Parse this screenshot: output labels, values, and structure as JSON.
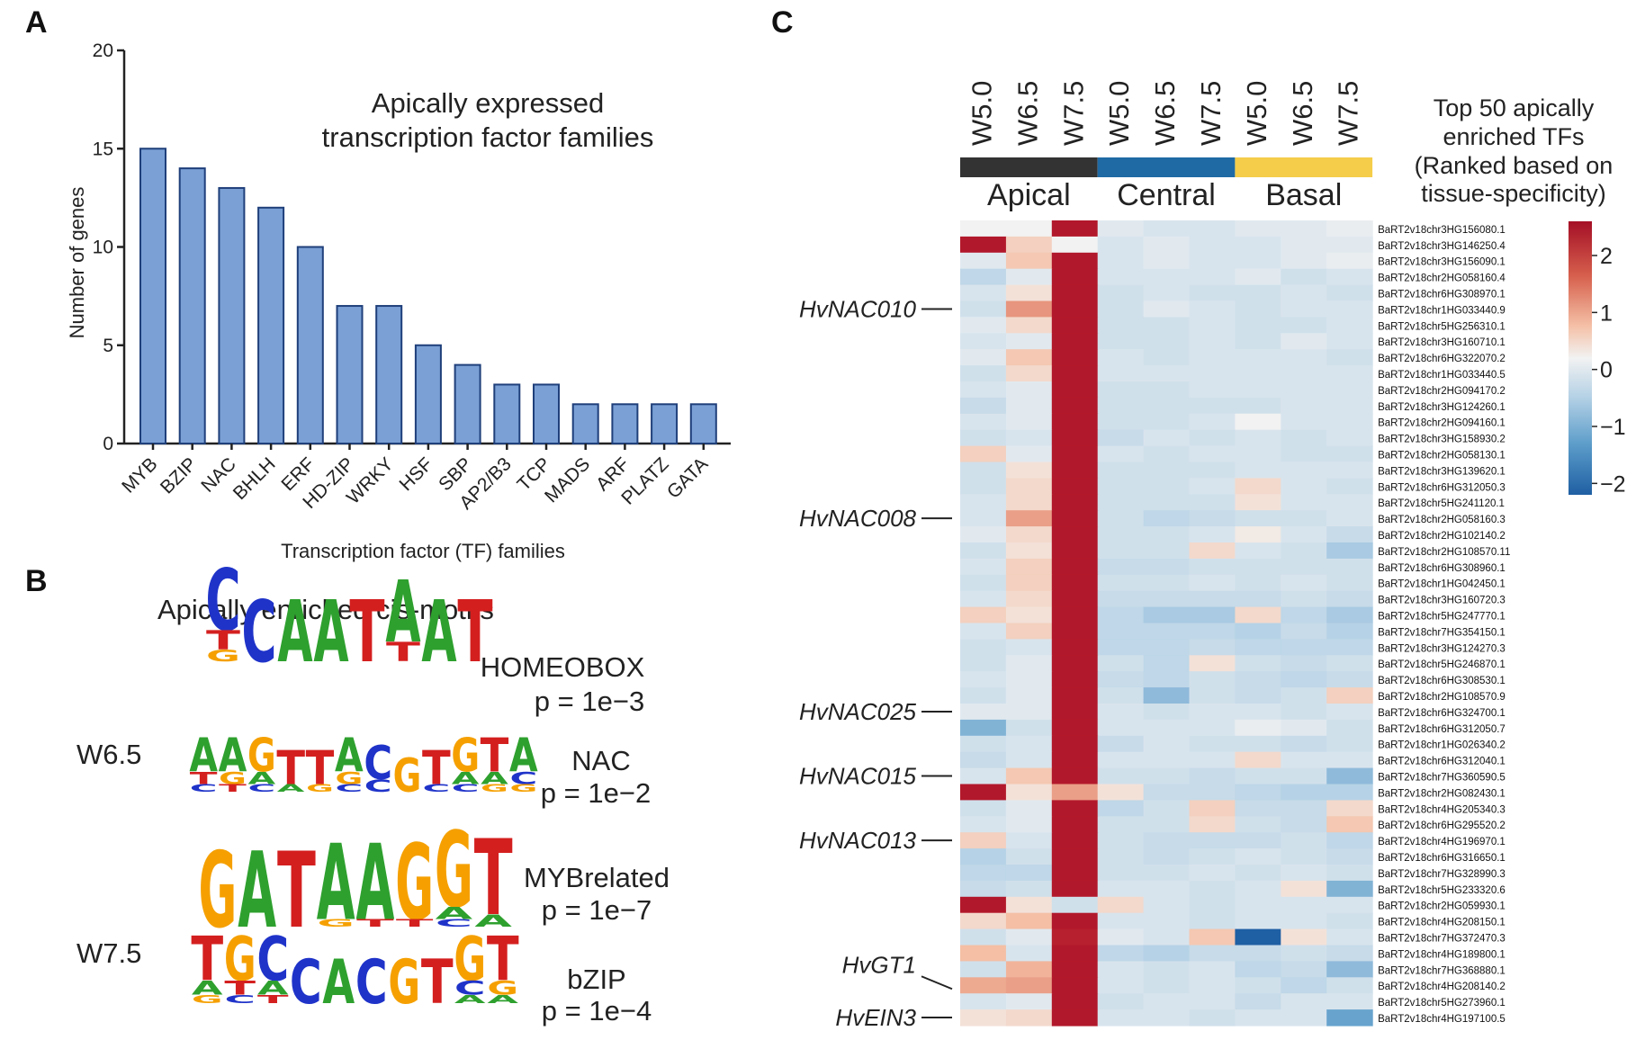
{
  "panels": {
    "a": "A",
    "b": "B",
    "c": "C"
  },
  "chart_data": [
    {
      "type": "bar",
      "title": [
        "Apically expressed",
        "transcription factor families"
      ],
      "xlabel": "Transcription factor (TF) families",
      "ylabel": "Number of genes",
      "categories": [
        "MYB",
        "BZIP",
        "NAC",
        "BHLH",
        "ERF",
        "HD-ZIP",
        "WRKY",
        "HSF",
        "SBP",
        "AP2/B3",
        "TCP",
        "MADS",
        "ARF",
        "PLATZ",
        "GATA"
      ],
      "values": [
        15,
        14,
        13,
        12,
        10,
        7,
        7,
        5,
        4,
        3,
        3,
        2,
        2,
        2,
        2
      ],
      "ylim": [
        0,
        20
      ],
      "yticks": [
        0,
        5,
        10,
        15,
        20
      ],
      "bar_color": "#7aa0d6",
      "bar_edge": "#1f3f7a"
    },
    {
      "type": "heatmap",
      "columns": [
        "W5.0",
        "W6.5",
        "W7.5",
        "W5.0",
        "W6.5",
        "W7.5",
        "W5.0",
        "W6.5",
        "W7.5"
      ],
      "groups": [
        {
          "label": "Apical",
          "color": "#333333"
        },
        {
          "label": "Central",
          "color": "#1f6aa5"
        },
        {
          "label": "Basal",
          "color": "#f5cd4a"
        }
      ],
      "rows": [
        "BaRT2v18chr3HG156080.1",
        "BaRT2v18chr3HG146250.4",
        "BaRT2v18chr3HG156090.1",
        "BaRT2v18chr2HG058160.4",
        "BaRT2v18chr6HG308970.1",
        "BaRT2v18chr1HG033440.9",
        "BaRT2v18chr5HG256310.1",
        "BaRT2v18chr3HG160710.1",
        "BaRT2v18chr6HG322070.2",
        "BaRT2v18chr1HG033440.5",
        "BaRT2v18chr2HG094170.2",
        "BaRT2v18chr3HG124260.1",
        "BaRT2v18chr2HG094160.1",
        "BaRT2v18chr3HG158930.2",
        "BaRT2v18chr2HG058130.1",
        "BaRT2v18chr3HG139620.1",
        "BaRT2v18chr6HG312050.3",
        "BaRT2v18chr5HG241120.1",
        "BaRT2v18chr2HG058160.3",
        "BaRT2v18chr2HG102140.2",
        "BaRT2v18chr2HG108570.11",
        "BaRT2v18chr6HG308960.1",
        "BaRT2v18chr1HG042450.1",
        "BaRT2v18chr3HG160720.3",
        "BaRT2v18chr5HG247770.1",
        "BaRT2v18chr7HG354150.1",
        "BaRT2v18chr3HG124270.3",
        "BaRT2v18chr5HG246870.1",
        "BaRT2v18chr6HG308530.1",
        "BaRT2v18chr2HG108570.9",
        "BaRT2v18chr6HG324700.1",
        "BaRT2v18chr6HG312050.7",
        "BaRT2v18chr1HG026340.2",
        "BaRT2v18chr6HG312040.1",
        "BaRT2v18chr7HG360590.5",
        "BaRT2v18chr2HG082430.1",
        "BaRT2v18chr4HG205340.3",
        "BaRT2v18chr6HG295520.2",
        "BaRT2v18chr4HG196970.1",
        "BaRT2v18chr6HG316650.1",
        "BaRT2v18chr7HG328990.3",
        "BaRT2v18chr5HG233320.6",
        "BaRT2v18chr2HG059930.1",
        "BaRT2v18chr4HG208150.1",
        "BaRT2v18chr7HG372470.3",
        "BaRT2v18chr4HG189800.1",
        "BaRT2v18chr7HG368880.1",
        "BaRT2v18chr4HG208140.2",
        "BaRT2v18chr5HG273960.1",
        "BaRT2v18chr4HG197100.5"
      ],
      "legend_title": [
        "Top 50 apically",
        "enriched TFs",
        "(Ranked based on",
        "tissue-specificity)"
      ],
      "colorbar": {
        "ticks": [
          "2",
          "1",
          "0",
          "−1",
          "−2"
        ],
        "range": [
          -2.2,
          2.6
        ],
        "low": "#2166ac",
        "mid": "#f7f7f7",
        "high": "#b2182b"
      },
      "annotations": [
        {
          "label": "HvNAC010",
          "row": 5
        },
        {
          "label": "HvNAC008",
          "row": 18
        },
        {
          "label": "HvNAC025",
          "row": 30
        },
        {
          "label": "HvNAC015",
          "row": 34
        },
        {
          "label": "HvNAC013",
          "row": 38
        },
        {
          "label": "HvGT1",
          "row": 47
        },
        {
          "label": "HvEIN3",
          "row": 49
        }
      ],
      "values": [
        [
          0.0,
          0.0,
          2.6,
          -0.2,
          -0.3,
          -0.3,
          -0.2,
          -0.2,
          -0.1
        ],
        [
          2.6,
          0.4,
          0.0,
          -0.3,
          -0.2,
          -0.3,
          -0.3,
          -0.2,
          -0.2
        ],
        [
          -0.2,
          0.5,
          2.6,
          -0.3,
          -0.2,
          -0.3,
          -0.3,
          -0.2,
          -0.1
        ],
        [
          -0.6,
          -0.2,
          2.6,
          -0.3,
          -0.3,
          -0.3,
          -0.2,
          -0.4,
          -0.3
        ],
        [
          -0.3,
          0.2,
          2.6,
          -0.4,
          -0.3,
          -0.4,
          -0.4,
          -0.3,
          -0.4
        ],
        [
          -0.4,
          1.0,
          2.6,
          -0.4,
          -0.2,
          -0.3,
          -0.4,
          -0.3,
          -0.3
        ],
        [
          -0.2,
          0.3,
          2.6,
          -0.4,
          -0.4,
          -0.3,
          -0.4,
          -0.4,
          -0.3
        ],
        [
          -0.3,
          -0.2,
          2.6,
          -0.4,
          -0.4,
          -0.3,
          -0.4,
          -0.2,
          -0.3
        ],
        [
          -0.2,
          0.5,
          2.6,
          -0.3,
          -0.4,
          -0.3,
          -0.3,
          -0.3,
          -0.4
        ],
        [
          -0.4,
          0.3,
          2.6,
          -0.3,
          -0.3,
          -0.3,
          -0.3,
          -0.3,
          -0.3
        ],
        [
          -0.3,
          -0.2,
          2.6,
          -0.4,
          -0.4,
          -0.3,
          -0.3,
          -0.3,
          -0.3
        ],
        [
          -0.5,
          -0.2,
          2.6,
          -0.4,
          -0.4,
          -0.4,
          -0.4,
          -0.3,
          -0.3
        ],
        [
          -0.3,
          -0.2,
          2.6,
          -0.4,
          -0.4,
          -0.3,
          0.0,
          -0.3,
          -0.3
        ],
        [
          -0.4,
          -0.3,
          2.6,
          -0.5,
          -0.3,
          -0.4,
          -0.3,
          -0.4,
          -0.3
        ],
        [
          0.4,
          -0.2,
          2.6,
          -0.3,
          -0.4,
          -0.3,
          -0.3,
          -0.4,
          -0.4
        ],
        [
          -0.4,
          0.2,
          2.6,
          -0.4,
          -0.4,
          -0.4,
          -0.3,
          -0.3,
          -0.3
        ],
        [
          -0.4,
          0.3,
          2.6,
          -0.4,
          -0.4,
          -0.3,
          0.3,
          -0.3,
          -0.4
        ],
        [
          -0.3,
          0.3,
          2.6,
          -0.4,
          -0.4,
          -0.4,
          0.2,
          -0.3,
          -0.3
        ],
        [
          -0.3,
          0.9,
          2.6,
          -0.4,
          -0.6,
          -0.5,
          -0.4,
          -0.4,
          -0.3
        ],
        [
          -0.2,
          0.3,
          2.6,
          -0.4,
          -0.4,
          -0.3,
          0.1,
          -0.3,
          -0.5
        ],
        [
          -0.4,
          0.2,
          2.6,
          -0.4,
          -0.4,
          0.3,
          -0.3,
          -0.4,
          -0.8
        ],
        [
          -0.3,
          0.4,
          2.6,
          -0.5,
          -0.5,
          -0.4,
          -0.4,
          -0.4,
          -0.4
        ],
        [
          -0.4,
          0.4,
          2.6,
          -0.4,
          -0.4,
          -0.3,
          -0.4,
          -0.3,
          -0.4
        ],
        [
          -0.3,
          0.3,
          2.6,
          -0.5,
          -0.5,
          -0.5,
          -0.5,
          -0.4,
          -0.5
        ],
        [
          0.4,
          0.2,
          2.6,
          -0.6,
          -0.8,
          -0.8,
          0.3,
          -0.6,
          -0.8
        ],
        [
          -0.3,
          0.4,
          2.6,
          -0.6,
          -0.6,
          -0.6,
          -0.7,
          -0.5,
          -0.7
        ],
        [
          -0.4,
          -0.3,
          2.6,
          -0.6,
          -0.6,
          -0.5,
          -0.6,
          -0.6,
          -0.6
        ],
        [
          -0.4,
          -0.2,
          2.6,
          -0.4,
          -0.6,
          0.2,
          -0.4,
          -0.5,
          -0.4
        ],
        [
          -0.3,
          -0.2,
          2.6,
          -0.5,
          -0.6,
          -0.4,
          -0.5,
          -0.6,
          -0.5
        ],
        [
          -0.4,
          -0.2,
          2.6,
          -0.4,
          -1.0,
          -0.4,
          -0.5,
          -0.4,
          0.4
        ],
        [
          -0.2,
          -0.2,
          2.6,
          -0.3,
          -0.4,
          -0.3,
          -0.3,
          -0.4,
          -0.3
        ],
        [
          -1.1,
          -0.4,
          2.6,
          -0.3,
          -0.3,
          -0.3,
          -0.1,
          -0.2,
          -0.4
        ],
        [
          -0.4,
          -0.3,
          2.6,
          -0.5,
          -0.3,
          -0.4,
          -0.4,
          -0.5,
          -0.4
        ],
        [
          -0.5,
          -0.3,
          2.6,
          -0.3,
          -0.3,
          -0.3,
          0.3,
          -0.3,
          -0.3
        ],
        [
          -0.3,
          0.5,
          2.6,
          -0.4,
          -0.4,
          -0.5,
          -0.4,
          -0.4,
          -1.0
        ],
        [
          2.6,
          0.2,
          0.9,
          0.2,
          -0.5,
          -0.5,
          -0.6,
          -0.7,
          -0.7
        ],
        [
          -0.4,
          -0.2,
          2.6,
          -0.6,
          -0.4,
          0.4,
          -0.5,
          -0.5,
          0.3
        ],
        [
          -0.3,
          -0.2,
          2.6,
          -0.4,
          -0.4,
          0.3,
          -0.4,
          -0.5,
          0.5
        ],
        [
          0.4,
          -0.3,
          2.6,
          -0.4,
          -0.5,
          -0.5,
          -0.5,
          -0.4,
          -0.6
        ],
        [
          -0.7,
          -0.4,
          2.6,
          -0.4,
          -0.5,
          -0.4,
          -0.3,
          -0.4,
          -0.5
        ],
        [
          -0.6,
          -0.6,
          2.6,
          -0.4,
          -0.4,
          -0.3,
          -0.4,
          -0.3,
          -0.4
        ],
        [
          -0.5,
          -0.4,
          2.6,
          -0.3,
          -0.3,
          -0.4,
          -0.3,
          0.2,
          -1.1
        ],
        [
          2.6,
          0.2,
          -0.4,
          0.3,
          -0.3,
          -0.4,
          -0.3,
          -0.3,
          -0.3
        ],
        [
          0.3,
          0.6,
          2.4,
          -0.3,
          -0.3,
          -0.4,
          -0.3,
          -0.3,
          -0.4
        ],
        [
          -0.4,
          -0.2,
          2.3,
          -0.2,
          -0.3,
          0.5,
          -2.2,
          0.2,
          -0.3
        ],
        [
          0.6,
          -0.3,
          2.5,
          -0.6,
          -0.7,
          -0.5,
          -0.5,
          -0.4,
          -0.5
        ],
        [
          -0.4,
          0.7,
          2.5,
          -0.3,
          -0.4,
          -0.3,
          -0.6,
          -0.5,
          -1.0
        ],
        [
          0.8,
          0.9,
          2.5,
          -0.3,
          -0.4,
          -0.3,
          -0.4,
          -0.6,
          -0.4
        ],
        [
          -0.3,
          -0.2,
          2.6,
          -0.4,
          -0.3,
          -0.3,
          -0.5,
          -0.3,
          -0.3
        ],
        [
          0.2,
          0.3,
          2.6,
          -0.3,
          -0.3,
          -0.4,
          -0.3,
          -0.3,
          -1.3
        ]
      ]
    }
  ],
  "motifs": {
    "title": "Apically enriched cis-motifs",
    "stages": [
      "W6.5",
      "W7.5"
    ],
    "items": [
      {
        "name": "HOMEOBOX",
        "p": "p = 1e−3",
        "top": "CCAATAAT",
        "sub": "T    T  ",
        "sub2": "G       "
      },
      {
        "name": "NAC",
        "p": "p = 1e−2",
        "top": "AAGTTACGTGTA",
        "sub": "TGA  GC  AAC",
        "sub2": "CTCAGC  CCGG"
      },
      {
        "name": "MYBrelated",
        "p": "p = 1e−7",
        "top": "GATAAGGT",
        "sub": "      AA",
        "sub2": "   GTTC "
      },
      {
        "name": "bZIP",
        "p": "p = 1e−4",
        "top": "TGCCACGTGT",
        "sub": "ATA     CG",
        "sub2": "GCT     AA"
      }
    ]
  }
}
